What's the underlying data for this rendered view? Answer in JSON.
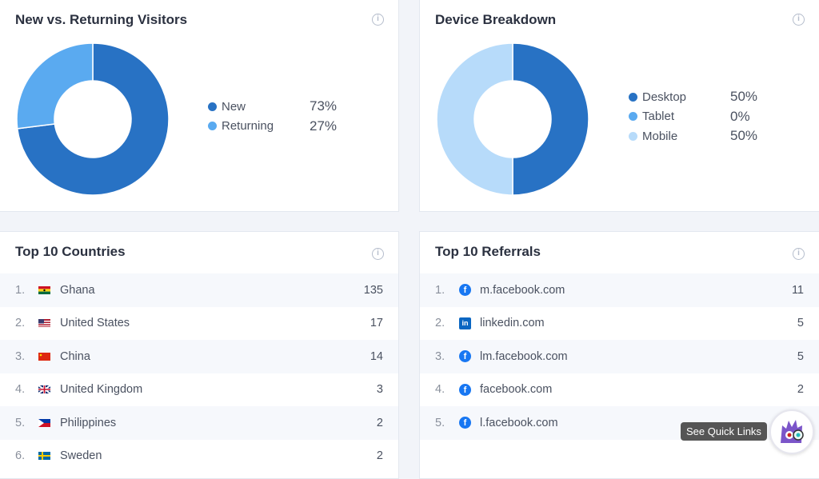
{
  "visitors": {
    "title": "New vs. Returning Visitors",
    "items": [
      {
        "label": "New",
        "pct": 73,
        "pct_label": "73%",
        "color": "#2872c4"
      },
      {
        "label": "Returning",
        "pct": 27,
        "pct_label": "27%",
        "color": "#5aaaf0"
      }
    ]
  },
  "devices": {
    "title": "Device Breakdown",
    "items": [
      {
        "label": "Desktop",
        "pct": 50,
        "pct_label": "50%",
        "color": "#2872c4"
      },
      {
        "label": "Tablet",
        "pct": 0,
        "pct_label": "0%",
        "color": "#5aaaf0"
      },
      {
        "label": "Mobile",
        "pct": 50,
        "pct_label": "50%",
        "color": "#b7dbfa"
      }
    ]
  },
  "countries": {
    "title": "Top 10 Countries",
    "rows": [
      {
        "n": "1.",
        "name": "Ghana",
        "value": "135",
        "flag": "gh"
      },
      {
        "n": "2.",
        "name": "United States",
        "value": "17",
        "flag": "us"
      },
      {
        "n": "3.",
        "name": "China",
        "value": "14",
        "flag": "cn"
      },
      {
        "n": "4.",
        "name": "United Kingdom",
        "value": "3",
        "flag": "gb"
      },
      {
        "n": "5.",
        "name": "Philippines",
        "value": "2",
        "flag": "ph"
      },
      {
        "n": "6.",
        "name": "Sweden",
        "value": "2",
        "flag": "se"
      }
    ]
  },
  "referrals": {
    "title": "Top 10 Referrals",
    "rows": [
      {
        "n": "1.",
        "name": "m.facebook.com",
        "value": "11",
        "icon": "facebook"
      },
      {
        "n": "2.",
        "name": "linkedin.com",
        "value": "5",
        "icon": "linkedin"
      },
      {
        "n": "3.",
        "name": "lm.facebook.com",
        "value": "5",
        "icon": "facebook"
      },
      {
        "n": "4.",
        "name": "facebook.com",
        "value": "2",
        "icon": "facebook"
      },
      {
        "n": "5.",
        "name": "l.facebook.com",
        "value": "",
        "icon": "facebook"
      }
    ]
  },
  "quick_links": {
    "tooltip": "See Quick Links"
  },
  "info_glyph": "i"
}
